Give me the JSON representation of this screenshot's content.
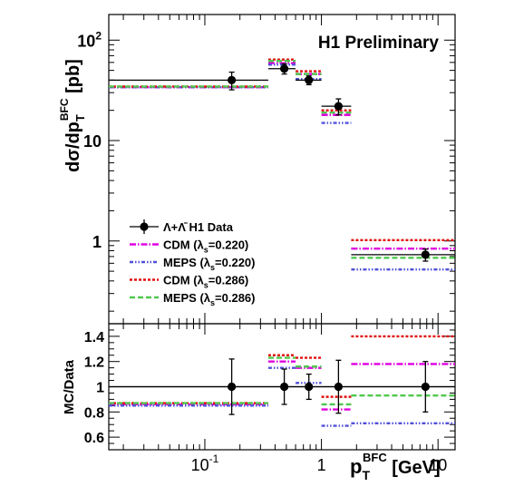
{
  "colors": {
    "data": "#000000",
    "cdm_0220": "#e000e0",
    "meps_0220": "#5050d8",
    "cdm_0286": "#e01010",
    "meps_0286": "#50c850"
  },
  "chart_data": [
    {
      "type": "scatter",
      "panel": "main",
      "annotation": "H1 Preliminary",
      "y_title": {
        "base": "dσ/dp",
        "sub": "T",
        "sup": "BFC",
        "unit": "[pb]"
      },
      "log_x": true,
      "log_y": true,
      "xlim": [
        0.015,
        14
      ],
      "ylim": [
        0.15,
        180
      ],
      "y_tick_labels": [
        {
          "value": 100,
          "base": "10",
          "exp": "2"
        },
        {
          "value": 10,
          "base": "10",
          "exp": ""
        },
        {
          "value": 1,
          "base": "1",
          "exp": ""
        }
      ],
      "legend": {
        "position": "lower-left",
        "entries": [
          {
            "key": "data",
            "text": "Λ+Λ̄ H1 Data"
          },
          {
            "key": "cdm_0220",
            "pre": "CDM (λ",
            "sub": "s",
            "post": "=0.220)"
          },
          {
            "key": "meps_0220",
            "pre": "MEPS (λ",
            "sub": "s",
            "post": "=0.220)"
          },
          {
            "key": "cdm_0286",
            "pre": "CDM (λ",
            "sub": "s",
            "post": "=0.286)"
          },
          {
            "key": "meps_0286",
            "pre": "MEPS (λ",
            "sub": "s",
            "post": "=0.286)"
          }
        ]
      },
      "data_points": [
        {
          "x": 0.17,
          "xlow": 0.015,
          "xhigh": 0.35,
          "y": 40,
          "yerr": 8
        },
        {
          "x": 0.48,
          "xlow": 0.35,
          "xhigh": 0.6,
          "y": 52,
          "yerr": 6
        },
        {
          "x": 0.78,
          "xlow": 0.6,
          "xhigh": 1.0,
          "y": 40,
          "yerr": 4
        },
        {
          "x": 1.4,
          "xlow": 1.0,
          "xhigh": 1.8,
          "y": 22,
          "yerr": 4
        },
        {
          "x": 7.8,
          "xlow": 1.8,
          "xhigh": 14,
          "y": 0.73,
          "yerr": 0.1
        }
      ],
      "series": [
        {
          "key": "cdm_0220",
          "name": "CDM (λs=0.220)",
          "bins": [
            {
              "xlow": 0.015,
              "xhigh": 0.35,
              "y": 34
            },
            {
              "xlow": 0.35,
              "xhigh": 0.6,
              "y": 59
            },
            {
              "xlow": 0.6,
              "xhigh": 1.0,
              "y": 46
            },
            {
              "xlow": 1.0,
              "xhigh": 1.8,
              "y": 18
            },
            {
              "xlow": 1.8,
              "xhigh": 14,
              "y": 0.84
            }
          ]
        },
        {
          "key": "meps_0220",
          "name": "MEPS (λs=0.220)",
          "bins": [
            {
              "xlow": 0.015,
              "xhigh": 0.35,
              "y": 34
            },
            {
              "xlow": 0.35,
              "xhigh": 0.6,
              "y": 57
            },
            {
              "xlow": 0.6,
              "xhigh": 1.0,
              "y": 41
            },
            {
              "xlow": 1.0,
              "xhigh": 1.8,
              "y": 15
            },
            {
              "xlow": 1.8,
              "xhigh": 14,
              "y": 0.52
            }
          ]
        },
        {
          "key": "cdm_0286",
          "name": "CDM (λs=0.286)",
          "bins": [
            {
              "xlow": 0.015,
              "xhigh": 0.35,
              "y": 34.5
            },
            {
              "xlow": 0.35,
              "xhigh": 0.6,
              "y": 64
            },
            {
              "xlow": 0.6,
              "xhigh": 1.0,
              "y": 49
            },
            {
              "xlow": 1.0,
              "xhigh": 1.8,
              "y": 20
            },
            {
              "xlow": 1.8,
              "xhigh": 14,
              "y": 1.02
            }
          ]
        },
        {
          "key": "meps_0286",
          "name": "MEPS (λs=0.286)",
          "bins": [
            {
              "xlow": 0.015,
              "xhigh": 0.35,
              "y": 34.5
            },
            {
              "xlow": 0.35,
              "xhigh": 0.6,
              "y": 62
            },
            {
              "xlow": 0.6,
              "xhigh": 1.0,
              "y": 46
            },
            {
              "xlow": 1.0,
              "xhigh": 1.8,
              "y": 19
            },
            {
              "xlow": 1.8,
              "xhigh": 14,
              "y": 0.68
            }
          ]
        }
      ]
    },
    {
      "type": "scatter",
      "panel": "ratio",
      "ylabel": "MC/Data",
      "x_title": {
        "base": "p",
        "sub": "T",
        "sup": "BFC",
        "unit": "[GeV]"
      },
      "log_x": true,
      "xlim": [
        0.015,
        14
      ],
      "ylim": [
        0.5,
        1.5
      ],
      "y_ticks": [
        "0.6",
        "0.8",
        "1",
        "1.2",
        "1.4"
      ],
      "x_tick_labels": [
        {
          "value": 0.1,
          "base": "10",
          "exp": "-1"
        },
        {
          "value": 1,
          "base": "1",
          "exp": ""
        },
        {
          "value": 10,
          "base": "10",
          "exp": ""
        }
      ],
      "reference_line": 1,
      "data_points": [
        {
          "x": 0.17,
          "xlow": 0.015,
          "xhigh": 0.35,
          "y": 1.0,
          "yerr": 0.22
        },
        {
          "x": 0.48,
          "xlow": 0.35,
          "xhigh": 0.6,
          "y": 1.0,
          "yerr": 0.14
        },
        {
          "x": 0.78,
          "xlow": 0.6,
          "xhigh": 1.0,
          "y": 1.0,
          "yerr": 0.1
        },
        {
          "x": 1.4,
          "xlow": 1.0,
          "xhigh": 1.8,
          "y": 1.0,
          "yerr": 0.21
        },
        {
          "x": 7.8,
          "xlow": 1.8,
          "xhigh": 14,
          "y": 1.0,
          "yerr": 0.2
        }
      ],
      "series": [
        {
          "key": "cdm_0220",
          "name": "CDM (λs=0.220)",
          "bins": [
            {
              "xlow": 0.015,
              "xhigh": 0.35,
              "y": 0.86
            },
            {
              "xlow": 0.35,
              "xhigh": 0.6,
              "y": 1.2
            },
            {
              "xlow": 0.6,
              "xhigh": 1.0,
              "y": 1.15
            },
            {
              "xlow": 1.0,
              "xhigh": 1.8,
              "y": 0.82
            },
            {
              "xlow": 1.8,
              "xhigh": 14,
              "y": 1.18
            }
          ]
        },
        {
          "key": "meps_0220",
          "name": "MEPS (λs=0.220)",
          "bins": [
            {
              "xlow": 0.015,
              "xhigh": 0.35,
              "y": 0.85
            },
            {
              "xlow": 0.35,
              "xhigh": 0.6,
              "y": 1.15
            },
            {
              "xlow": 0.6,
              "xhigh": 1.0,
              "y": 1.03
            },
            {
              "xlow": 1.0,
              "xhigh": 1.8,
              "y": 0.69
            },
            {
              "xlow": 1.8,
              "xhigh": 14,
              "y": 0.71
            }
          ]
        },
        {
          "key": "cdm_0286",
          "name": "CDM (λs=0.286)",
          "bins": [
            {
              "xlow": 0.015,
              "xhigh": 0.35,
              "y": 0.87
            },
            {
              "xlow": 0.35,
              "xhigh": 0.6,
              "y": 1.25
            },
            {
              "xlow": 0.6,
              "xhigh": 1.0,
              "y": 1.23
            },
            {
              "xlow": 1.0,
              "xhigh": 1.8,
              "y": 0.92
            },
            {
              "xlow": 1.8,
              "xhigh": 14,
              "y": 1.4
            }
          ]
        },
        {
          "key": "meps_0286",
          "name": "MEPS (λs=0.286)",
          "bins": [
            {
              "xlow": 0.015,
              "xhigh": 0.35,
              "y": 0.87
            },
            {
              "xlow": 0.35,
              "xhigh": 0.6,
              "y": 1.23
            },
            {
              "xlow": 0.6,
              "xhigh": 1.0,
              "y": 1.16
            },
            {
              "xlow": 1.0,
              "xhigh": 1.8,
              "y": 0.86
            },
            {
              "xlow": 1.8,
              "xhigh": 14,
              "y": 0.93
            }
          ]
        }
      ]
    }
  ]
}
